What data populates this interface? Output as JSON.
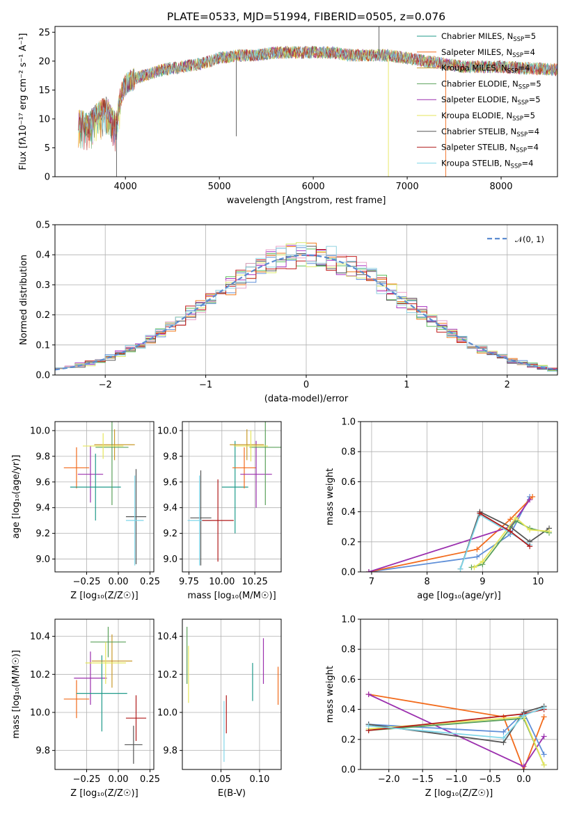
{
  "title": "PLATE=0533, MJD=51994, FIBERID=0505, z=0.076",
  "colors": [
    "#1f9a8a",
    "#f26b1c",
    "#c99a2a",
    "#5aa05a",
    "#9b2fae",
    "#e6e65a",
    "#555555",
    "#b01a1a",
    "#7fd6e8"
  ],
  "hist_colors": [
    "#5f8fd8",
    "#f07a1a",
    "#5fbf5f",
    "#a830c0",
    "#e8a0c8",
    "#d9e86a",
    "#5a5a5a",
    "#c01a1a",
    "#8fd0e0"
  ],
  "chart_data": [
    {
      "type": "line",
      "name": "spectrum",
      "xlabel": "wavelength [Angstrom, rest frame]",
      "ylabel": "Flux [fλ10⁻¹⁷ erg cm⁻² s⁻¹ A⁻¹]",
      "xlim": [
        3250,
        8600
      ],
      "ylim": [
        0,
        26
      ],
      "xticks": [
        4000,
        5000,
        6000,
        7000,
        8000
      ],
      "yticks": [
        0,
        5,
        10,
        15,
        20,
        25
      ],
      "legend_position": "top-right",
      "legend": [
        "Chabrier MILES, N_SSP=5",
        "Salpeter MILES, N_SSP=4",
        "Kroupa MILES, N_SSP=4",
        "Chabrier ELODIE, N_SSP=5",
        "Salpeter ELODIE, N_SSP=5",
        "Kroupa ELODIE, N_SSP=5",
        "Chabrier STELIB, N_SSP=4",
        "Salpeter STELIB, N_SSP=4",
        "Kroupa STELIB, N_SSP=4"
      ],
      "x": [
        3500,
        3600,
        3700,
        3800,
        3900,
        3950,
        4000,
        4100,
        4200,
        4300,
        4400,
        4600,
        4800,
        5000,
        5200,
        5400,
        5600,
        5800,
        6000,
        6200,
        6400,
        6600,
        6800,
        7000,
        7200,
        7400,
        7600,
        7800,
        8000,
        8200,
        8400,
        8600
      ],
      "y": [
        10,
        9,
        11,
        12,
        9,
        14,
        16,
        17,
        17.5,
        18,
        18.5,
        19,
        19.5,
        20.5,
        21,
        21,
        21.5,
        21.5,
        21.5,
        21.5,
        21,
        21,
        21,
        20.5,
        20,
        19.5,
        19,
        19,
        19,
        18.8,
        18.7,
        18.5
      ]
    },
    {
      "type": "histogram",
      "name": "residuals",
      "xlabel": "(data-model)/error",
      "ylabel": "Normed distribution",
      "xlim": [
        -2.5,
        2.5
      ],
      "ylim": [
        0,
        0.5
      ],
      "xticks": [
        -2,
        -1,
        0,
        1,
        2
      ],
      "yticks": [
        0.0,
        0.1,
        0.2,
        0.3,
        0.4,
        0.5
      ],
      "legend": [
        "𝒩(0, 1)"
      ],
      "legend_position": "top-right",
      "bin_width": 0.1
    },
    {
      "type": "errorbar",
      "name": "age-vs-Z",
      "xlabel": "Z [log₁₀(Z/Z☉)]",
      "ylabel": "age  [log₁₀(age/yr)]",
      "xlim": [
        -0.5,
        0.28
      ],
      "ylim": [
        8.9,
        10.07
      ],
      "xticks": [
        -0.25,
        0.0,
        0.25
      ],
      "yticks": [
        9.0,
        9.2,
        9.4,
        9.6,
        9.8,
        10.0
      ],
      "points": [
        {
          "x": -0.33,
          "xerr": 0.1,
          "y": 9.71,
          "yerr": 0.16,
          "c": 1
        },
        {
          "x": -0.22,
          "xerr": 0.1,
          "y": 9.66,
          "yerr": 0.22,
          "c": 4
        },
        {
          "x": -0.18,
          "xerr": 0.2,
          "y": 9.56,
          "yerr": 0.26,
          "c": 0
        },
        {
          "x": -0.03,
          "xerr": 0.16,
          "y": 9.89,
          "yerr": 0.12,
          "c": 2
        },
        {
          "x": -0.05,
          "xerr": 0.13,
          "y": 9.87,
          "yerr": 0.45,
          "c": 3
        },
        {
          "x": -0.12,
          "xerr": 0.16,
          "y": 9.88,
          "yerr": 0.1,
          "c": 5
        },
        {
          "x": 0.14,
          "xerr": 0.08,
          "y": 9.33,
          "yerr": 0.37,
          "c": 6
        },
        {
          "x": 0.13,
          "xerr": 0.07,
          "y": 9.3,
          "yerr": 0.35,
          "c": 8
        }
      ]
    },
    {
      "type": "errorbar",
      "name": "age-vs-mass",
      "xlabel": "mass [log₁₀(M/M☉)]",
      "ylabel": "",
      "xlim": [
        9.7,
        10.45
      ],
      "ylim": [
        8.9,
        10.07
      ],
      "xticks": [
        9.75,
        10.0,
        10.25
      ],
      "yticks": [
        9.0,
        9.2,
        9.4,
        9.6,
        9.8,
        10.0
      ],
      "points": [
        {
          "x": 9.84,
          "xerr": 0.08,
          "y": 9.32,
          "yerr": 0.37,
          "c": 6
        },
        {
          "x": 9.83,
          "xerr": 0.09,
          "y": 9.3,
          "yerr": 0.35,
          "c": 8
        },
        {
          "x": 9.97,
          "xerr": 0.12,
          "y": 9.3,
          "yerr": 0.32,
          "c": 7
        },
        {
          "x": 10.1,
          "xerr": 0.1,
          "y": 9.56,
          "yerr": 0.36,
          "c": 0
        },
        {
          "x": 10.17,
          "xerr": 0.09,
          "y": 9.71,
          "yerr": 0.16,
          "c": 1
        },
        {
          "x": 10.26,
          "xerr": 0.12,
          "y": 9.66,
          "yerr": 0.26,
          "c": 4
        },
        {
          "x": 10.19,
          "xerr": 0.13,
          "y": 9.89,
          "yerr": 0.12,
          "c": 2
        },
        {
          "x": 10.33,
          "xerr": 0.12,
          "y": 9.87,
          "yerr": 0.45,
          "c": 3
        },
        {
          "x": 10.22,
          "xerr": 0.13,
          "y": 9.88,
          "yerr": 0.12,
          "c": 5
        }
      ]
    },
    {
      "type": "line",
      "name": "mass-weight-vs-age",
      "xlabel": "age  [log₁₀(age/yr)]",
      "ylabel": "mass weight",
      "xlim": [
        6.8,
        10.35
      ],
      "ylim": [
        0,
        1
      ],
      "xticks": [
        7,
        8,
        9,
        10
      ],
      "yticks": [
        0.0,
        0.2,
        0.4,
        0.6,
        0.8,
        1.0
      ],
      "series": [
        {
          "c": 0,
          "x": [
            6.95,
            8.9,
            9.5,
            9.85
          ],
          "y": [
            0.0,
            0.1,
            0.25,
            0.5
          ]
        },
        {
          "c": 1,
          "x": [
            6.95,
            8.9,
            9.5,
            9.9
          ],
          "y": [
            0.0,
            0.15,
            0.35,
            0.5
          ]
        },
        {
          "c": 4,
          "x": [
            6.95,
            9.5,
            9.85
          ],
          "y": [
            0.0,
            0.3,
            0.48
          ]
        },
        {
          "c": 6,
          "x": [
            8.6,
            8.95,
            9.5,
            9.85,
            10.2
          ],
          "y": [
            0.02,
            0.4,
            0.3,
            0.2,
            0.29
          ]
        },
        {
          "c": 3,
          "x": [
            8.8,
            9.0,
            9.6,
            9.85,
            10.2
          ],
          "y": [
            0.03,
            0.05,
            0.34,
            0.29,
            0.26
          ]
        },
        {
          "c": 5,
          "x": [
            8.85,
            9.0,
            9.6,
            9.85,
            10.2
          ],
          "y": [
            0.03,
            0.07,
            0.36,
            0.28,
            0.27
          ]
        },
        {
          "c": 8,
          "x": [
            8.6,
            8.95,
            9.5,
            9.85
          ],
          "y": [
            0.02,
            0.38,
            0.26,
            0.18
          ]
        },
        {
          "c": 7,
          "x": [
            8.95,
            9.5,
            9.85
          ],
          "y": [
            0.39,
            0.27,
            0.17
          ]
        }
      ]
    },
    {
      "type": "errorbar",
      "name": "mass-vs-Z",
      "xlabel": "Z [log₁₀(Z/Z☉)]",
      "ylabel": "mass [log₁₀(M/M☉)]",
      "xlim": [
        -0.5,
        0.28
      ],
      "ylim": [
        9.7,
        10.49
      ],
      "xticks": [
        -0.25,
        0.0,
        0.25
      ],
      "yticks": [
        9.8,
        10.0,
        10.2,
        10.4
      ],
      "points": [
        {
          "x": -0.33,
          "xerr": 0.1,
          "y": 10.07,
          "yerr": 0.1,
          "c": 1
        },
        {
          "x": -0.22,
          "xerr": 0.13,
          "y": 10.18,
          "yerr": 0.14,
          "c": 4
        },
        {
          "x": -0.13,
          "xerr": 0.2,
          "y": 10.1,
          "yerr": 0.2,
          "c": 0
        },
        {
          "x": -0.05,
          "xerr": 0.16,
          "y": 10.27,
          "yerr": 0.14,
          "c": 2
        },
        {
          "x": -0.08,
          "xerr": 0.14,
          "y": 10.37,
          "yerr": 0.08,
          "c": 3
        },
        {
          "x": -0.1,
          "xerr": 0.16,
          "y": 10.26,
          "yerr": 0.11,
          "c": 5
        },
        {
          "x": 0.14,
          "xerr": 0.08,
          "y": 9.97,
          "yerr": 0.12,
          "c": 7
        },
        {
          "x": 0.12,
          "xerr": 0.07,
          "y": 9.83,
          "yerr": 0.1,
          "c": 6
        }
      ]
    },
    {
      "type": "errorbar",
      "name": "mass-vs-EBV",
      "xlabel": "E(B-V)",
      "ylabel": "",
      "xlim": [
        0.0,
        0.128
      ],
      "ylim": [
        9.7,
        10.49
      ],
      "xticks": [
        0.05,
        0.1
      ],
      "yticks": [
        9.8,
        10.0,
        10.2,
        10.4
      ],
      "points": [
        {
          "x": 0.006,
          "y": 10.3,
          "yerr": 0.15,
          "c": 3
        },
        {
          "x": 0.008,
          "y": 10.2,
          "yerr": 0.15,
          "c": 5
        },
        {
          "x": 0.054,
          "y": 9.9,
          "yerr": 0.16,
          "c": 8
        },
        {
          "x": 0.057,
          "y": 9.99,
          "yerr": 0.1,
          "c": 7
        },
        {
          "x": 0.091,
          "y": 10.16,
          "yerr": 0.1,
          "c": 0
        },
        {
          "x": 0.105,
          "y": 10.27,
          "yerr": 0.12,
          "c": 4
        },
        {
          "x": 0.124,
          "y": 10.14,
          "yerr": 0.1,
          "c": 1
        }
      ]
    },
    {
      "type": "line",
      "name": "mass-weight-vs-Z",
      "xlabel": "Z [log₁₀(Z/Z☉)]",
      "ylabel": "mass weight",
      "xlim": [
        -2.42,
        0.5
      ],
      "ylim": [
        0,
        1
      ],
      "xticks": [
        -2.0,
        -1.5,
        -1.0,
        -0.5,
        0.0
      ],
      "yticks": [
        0.0,
        0.2,
        0.4,
        0.6,
        0.8,
        1.0
      ],
      "series": [
        {
          "c": 1,
          "x": [
            -2.3,
            -0.3,
            0.0,
            0.3
          ],
          "y": [
            0.5,
            0.35,
            0.0,
            0.35
          ]
        },
        {
          "c": 4,
          "x": [
            -2.3,
            0.0,
            0.3
          ],
          "y": [
            0.5,
            0.02,
            0.22
          ]
        },
        {
          "c": 0,
          "x": [
            -2.3,
            -0.3,
            0.0,
            0.3
          ],
          "y": [
            0.3,
            0.25,
            0.38,
            0.1
          ]
        },
        {
          "c": 6,
          "x": [
            -2.3,
            -0.3,
            0.0,
            0.3
          ],
          "y": [
            0.3,
            0.18,
            0.38,
            0.42
          ]
        },
        {
          "c": 3,
          "x": [
            -2.3,
            0.0,
            0.3
          ],
          "y": [
            0.26,
            0.34,
            0.03
          ]
        },
        {
          "c": 5,
          "x": [
            -2.3,
            0.0,
            0.3
          ],
          "y": [
            0.27,
            0.35,
            0.03
          ]
        },
        {
          "c": 7,
          "x": [
            -2.3,
            0.0,
            0.3
          ],
          "y": [
            0.26,
            0.37,
            0.4
          ]
        },
        {
          "c": 8,
          "x": [
            -2.3,
            -0.3,
            0.0,
            0.3
          ],
          "y": [
            0.29,
            0.21,
            0.36,
            0.41
          ]
        }
      ]
    }
  ]
}
